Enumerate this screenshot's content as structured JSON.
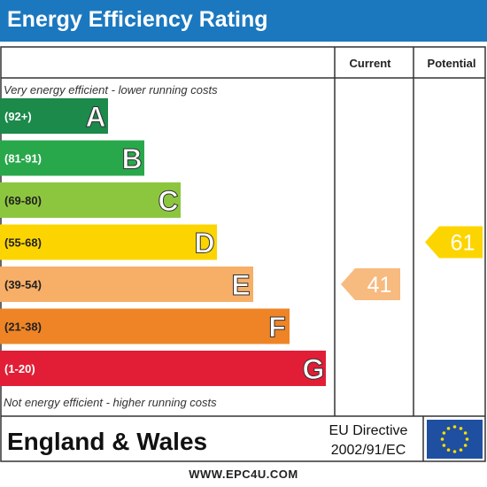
{
  "title": "Energy Efficiency Rating",
  "columns": {
    "current": "Current",
    "potential": "Potential"
  },
  "top_note": "Very energy efficient - lower running costs",
  "bottom_note": "Not energy efficient - higher running costs",
  "region": "England & Wales",
  "directive": {
    "line1": "EU Directive",
    "line2": "2002/91/EC"
  },
  "website": "WWW.EPC4U.COM",
  "colors": {
    "header": "#1b78bf",
    "arrow_current": "#f7ba7f",
    "arrow_potential": "#fcd500",
    "eu_flag": "#1f4fa1",
    "eu_stars": "#ffdd00"
  },
  "chart_data": {
    "type": "bar",
    "categories": [
      "A",
      "B",
      "C",
      "D",
      "E",
      "F",
      "G"
    ],
    "bands": [
      {
        "letter": "A",
        "range": "(92+)",
        "color": "#1b8a4a"
      },
      {
        "letter": "B",
        "range": "(81-91)",
        "color": "#29a84b"
      },
      {
        "letter": "C",
        "range": "(69-80)",
        "color": "#8cc63f"
      },
      {
        "letter": "D",
        "range": "(55-68)",
        "color": "#fcd500"
      },
      {
        "letter": "E",
        "range": "(39-54)",
        "color": "#f7ae67"
      },
      {
        "letter": "F",
        "range": "(21-38)",
        "color": "#ee8426"
      },
      {
        "letter": "G",
        "range": "(1-20)",
        "color": "#e21e36"
      }
    ],
    "current": {
      "value": 41,
      "band": "E"
    },
    "potential": {
      "value": 61,
      "band": "D"
    }
  }
}
